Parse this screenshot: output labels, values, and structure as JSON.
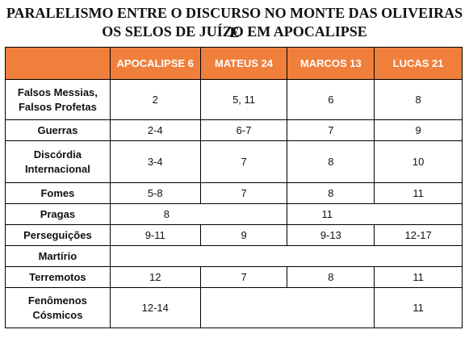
{
  "title": {
    "line1": "PARALELISMO ENTRE O DISCURSO NO MONTE DAS OLIVEIRAS E",
    "line2": "OS SELOS DE JUÍZO EM APOCALIPSE"
  },
  "columns": [
    "",
    "APOCALIPSE 6",
    "MATEUS 24",
    "MARCOS 13",
    "LUCAS 21"
  ],
  "rows": [
    {
      "label_l1": "Falsos Messias,",
      "label_l2": "Falsos Profetas",
      "apocalipse": "2",
      "mateus": "5, 11",
      "marcos": "6",
      "lucas": "8"
    },
    {
      "label_l1": "Guerras",
      "label_l2": "",
      "apocalipse": "2-4",
      "mateus": "6-7",
      "marcos": "7",
      "lucas": "9"
    },
    {
      "label_l1": "Discórdia",
      "label_l2": "Internacional",
      "apocalipse": "3-4",
      "mateus": "7",
      "marcos": "8",
      "lucas": "10"
    },
    {
      "label_l1": "Fomes",
      "label_l2": "",
      "apocalipse": "5-8",
      "mateus": "7",
      "marcos": "8",
      "lucas": "11"
    },
    {
      "label_l1": "Pragas",
      "label_l2": "",
      "apocalipse": "8",
      "mateus": "",
      "marcos": "11",
      "lucas": ""
    },
    {
      "label_l1": "Perseguições",
      "label_l2": "",
      "apocalipse": "9-11",
      "mateus": "9",
      "marcos": "9-13",
      "lucas": "12-17"
    },
    {
      "label_l1": "Martírio",
      "label_l2": "",
      "apocalipse": "",
      "mateus": "",
      "marcos": "",
      "lucas": ""
    },
    {
      "label_l1": "Terremotos",
      "label_l2": "",
      "apocalipse": "12",
      "mateus": "7",
      "marcos": "8",
      "lucas": "11"
    },
    {
      "label_l1": "Fenômenos",
      "label_l2": "Cósmicos",
      "apocalipse": "12-14",
      "mateus": "",
      "marcos": "",
      "lucas": "11"
    }
  ]
}
